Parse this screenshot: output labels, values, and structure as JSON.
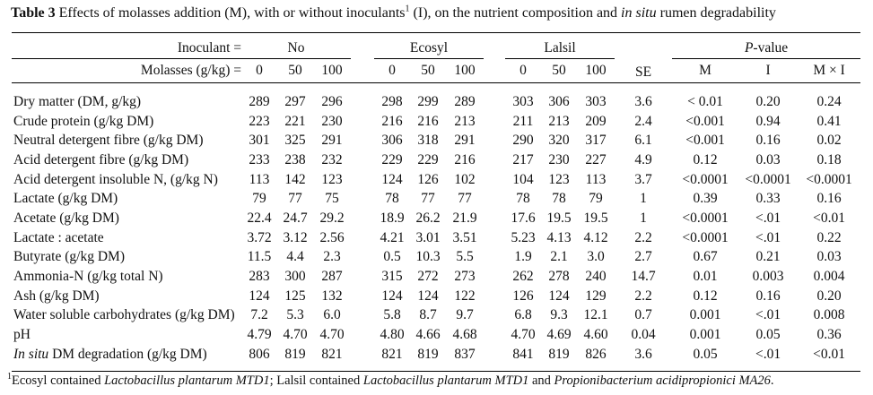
{
  "title": {
    "bold": "Table 3",
    "part1": " Effects of molasses addition (M), with or without inoculants",
    "sup": "1",
    "part2": " (I), on the nutrient composition and ",
    "italic": "in situ",
    "part3": " rumen degradability"
  },
  "header": {
    "inoculant_label": "Inoculant =",
    "molasses_label": "Molasses (g/kg) =",
    "group_no": "No",
    "group_ecosyl": "Ecosyl",
    "group_lalsil": "Lalsil",
    "se": "SE",
    "pvalue_italic": "P",
    "pvalue_rest": "-value",
    "levels": [
      "0",
      "50",
      "100"
    ],
    "p_cols": [
      "M",
      "I",
      "M × I"
    ]
  },
  "rows": [
    {
      "label_italic": "",
      "label": "Dry matter (DM, g/kg)",
      "values": [
        "289",
        "297",
        "296",
        "298",
        "299",
        "289",
        "303",
        "306",
        "303",
        "3.6",
        "< 0.01",
        "0.20",
        "0.24"
      ]
    },
    {
      "label_italic": "",
      "label": "Crude protein (g/kg DM)",
      "values": [
        "223",
        "221",
        "230",
        "216",
        "216",
        "213",
        "211",
        "213",
        "209",
        "2.4",
        "<0.001",
        "0.94",
        "0.41"
      ]
    },
    {
      "label_italic": "",
      "label": "Neutral detergent fibre (g/kg DM)",
      "values": [
        "301",
        "325",
        "291",
        "306",
        "318",
        "291",
        "290",
        "320",
        "317",
        "6.1",
        "<0.001",
        "0.16",
        "0.02"
      ]
    },
    {
      "label_italic": "",
      "label": "Acid detergent fibre (g/kg DM)",
      "values": [
        "233",
        "238",
        "232",
        "229",
        "229",
        "216",
        "217",
        "230",
        "227",
        "4.9",
        "0.12",
        "0.03",
        "0.18"
      ]
    },
    {
      "label_italic": "",
      "label": "Acid detergent insoluble N, (g/kg N)",
      "values": [
        "113",
        "142",
        "123",
        "124",
        "126",
        "102",
        "104",
        "123",
        "113",
        "3.7",
        "<0.0001",
        "<0.0001",
        "<0.0001"
      ]
    },
    {
      "label_italic": "",
      "label": "Lactate (g/kg DM)",
      "values": [
        "79",
        "77",
        "75",
        "78",
        "77",
        "77",
        "78",
        "78",
        "79",
        "1",
        "0.39",
        "0.33",
        "0.16"
      ]
    },
    {
      "label_italic": "",
      "label": "Acetate (g/kg DM)",
      "values": [
        "22.4",
        "24.7",
        "29.2",
        "18.9",
        "26.2",
        "21.9",
        "17.6",
        "19.5",
        "19.5",
        "1",
        "<0.0001",
        "<.01",
        "<0.01"
      ]
    },
    {
      "label_italic": "",
      "label": "Lactate : acetate",
      "values": [
        "3.72",
        "3.12",
        "2.56",
        "4.21",
        "3.01",
        "3.51",
        "5.23",
        "4.13",
        "4.12",
        "2.2",
        "<0.0001",
        "<.01",
        "0.22"
      ]
    },
    {
      "label_italic": "",
      "label": "Butyrate (g/kg DM)",
      "values": [
        "11.5",
        "4.4",
        "2.3",
        "0.5",
        "10.3",
        "5.5",
        "1.9",
        "2.1",
        "3.0",
        "2.7",
        "0.67",
        "0.21",
        "0.03"
      ]
    },
    {
      "label_italic": "",
      "label": "Ammonia-N (g/kg total N)",
      "values": [
        "283",
        "300",
        "287",
        "315",
        "272",
        "273",
        "262",
        "278",
        "240",
        "14.7",
        "0.01",
        "0.003",
        "0.004"
      ]
    },
    {
      "label_italic": "",
      "label": "Ash (g/kg DM)",
      "values": [
        "124",
        "125",
        "132",
        "124",
        "124",
        "122",
        "126",
        "124",
        "129",
        "2.2",
        "0.12",
        "0.16",
        "0.20"
      ]
    },
    {
      "label_italic": "",
      "label": "Water soluble carbohydrates (g/kg DM)",
      "values": [
        "7.2",
        "5.3",
        "6.0",
        "5.8",
        "8.7",
        "9.7",
        "6.8",
        "9.3",
        "12.1",
        "0.7",
        "0.001",
        "<.01",
        "0.008"
      ]
    },
    {
      "label_italic": "",
      "label": "pH",
      "values": [
        "4.79",
        "4.70",
        "4.70",
        "4.80",
        "4.66",
        "4.68",
        "4.70",
        "4.69",
        "4.60",
        "0.04",
        "0.001",
        "0.05",
        "0.36"
      ]
    },
    {
      "label_italic": "In situ",
      "label": " DM degradation (g/kg DM)",
      "values": [
        "806",
        "819",
        "821",
        "821",
        "819",
        "837",
        "841",
        "819",
        "826",
        "3.6",
        "0.05",
        "<.01",
        "<0.01"
      ]
    }
  ],
  "footnote": {
    "sup": "1",
    "part1": "Ecosyl contained ",
    "italic1": "Lactobacillus plantarum MTD1",
    "part2": "; Lalsil contained ",
    "italic2": "Lactobacillus plantarum MTD1",
    "part3": " and ",
    "italic3": "Propionibacterium acidipropionici MA26",
    "part4": "."
  }
}
